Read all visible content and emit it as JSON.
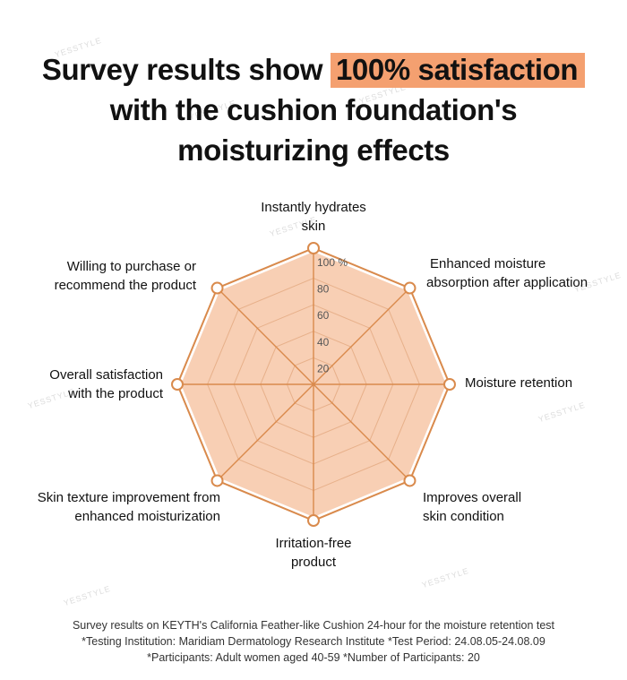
{
  "headline": {
    "line1_prefix": "Survey results show ",
    "line1_highlight": "100% satisfaction",
    "line2": "with the cushion foundation's",
    "line3": "moisturizing effects"
  },
  "chart_data": {
    "type": "radar",
    "title": "",
    "unit_label": "%",
    "ticks": [
      20,
      40,
      60,
      80,
      100
    ],
    "rlim": [
      0,
      100
    ],
    "categories": [
      "Instantly hydrates skin",
      "Enhanced moisture absorption after application",
      "Moisture retention",
      "Improves overall skin condition",
      "Irritation-free product",
      "Skin texture improvement from enhanced moisturization",
      "Overall satisfaction with the product",
      "Willing to purchase or recommend the product"
    ],
    "series": [
      {
        "values": [
          100,
          100,
          100,
          100,
          100,
          100,
          100,
          100
        ]
      }
    ],
    "colors": {
      "fill": "#f8cfb4",
      "line": "#d98a4c",
      "marker_fill": "#ffffff"
    }
  },
  "labels": {
    "axis1_l1": "Instantly hydrates",
    "axis1_l2": "skin",
    "axis2_l1": "Enhanced moisture",
    "axis2_l2": "absorption after application",
    "axis3_l1": "Moisture retention",
    "axis4_l1": "Improves overall",
    "axis4_l2": "skin condition",
    "axis5_l1": "Irritation-free",
    "axis5_l2": "product",
    "axis6_l1": "Skin texture improvement from",
    "axis6_l2": "enhanced moisturization",
    "axis7_l1": "Overall satisfaction",
    "axis7_l2": "with the product",
    "axis8_l1": "Willing to purchase or",
    "axis8_l2": "recommend the product"
  },
  "footer": {
    "line1": "Survey results on KEYTH's California Feather-like Cushion 24-hour for the moisture retention test",
    "line2": "*Testing Institution: Maridiam Dermatology Research Institute *Test Period: 24.08.05-24.08.09",
    "line3": "*Participants: Adult women aged 40-59 *Number of Participants: 20"
  },
  "watermark": {
    "text": "YESSTYLE"
  }
}
